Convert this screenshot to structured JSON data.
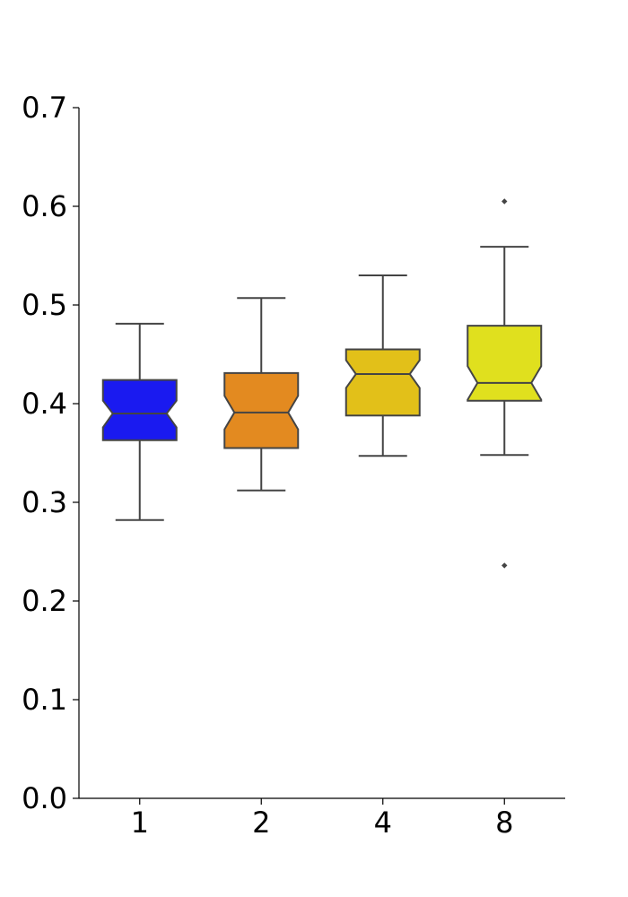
{
  "chart_data": {
    "type": "box",
    "notched": true,
    "categories": [
      "1",
      "2",
      "4",
      "8"
    ],
    "ylim": [
      0.0,
      0.7
    ],
    "yticks": [
      "0.0",
      "0.1",
      "0.2",
      "0.3",
      "0.4",
      "0.5",
      "0.6",
      "0.7"
    ],
    "ytick_values": [
      0.0,
      0.1,
      0.2,
      0.3,
      0.4,
      0.5,
      0.6,
      0.7
    ],
    "grid": false,
    "xlabel": "",
    "ylabel": "",
    "title": "",
    "boxes": [
      {
        "category": "1",
        "whisker_low": 0.282,
        "q1": 0.363,
        "median": 0.39,
        "q3": 0.424,
        "whisker_high": 0.481,
        "notch_low": 0.376,
        "notch_high": 0.403,
        "outliers": [],
        "color": "#1a1af0"
      },
      {
        "category": "2",
        "whisker_low": 0.312,
        "q1": 0.355,
        "median": 0.391,
        "q3": 0.431,
        "whisker_high": 0.507,
        "notch_low": 0.374,
        "notch_high": 0.408,
        "outliers": [],
        "color": "#e38a20"
      },
      {
        "category": "4",
        "whisker_low": 0.347,
        "q1": 0.388,
        "median": 0.43,
        "q3": 0.455,
        "whisker_high": 0.53,
        "notch_low": 0.416,
        "notch_high": 0.444,
        "outliers": [],
        "color": "#e2c019"
      },
      {
        "category": "8",
        "whisker_low": 0.348,
        "q1": 0.403,
        "median": 0.421,
        "q3": 0.479,
        "whisker_high": 0.559,
        "notch_low": 0.404,
        "notch_high": 0.438,
        "outliers": [
          0.605,
          0.236
        ],
        "color": "#e0e01e"
      }
    ]
  }
}
